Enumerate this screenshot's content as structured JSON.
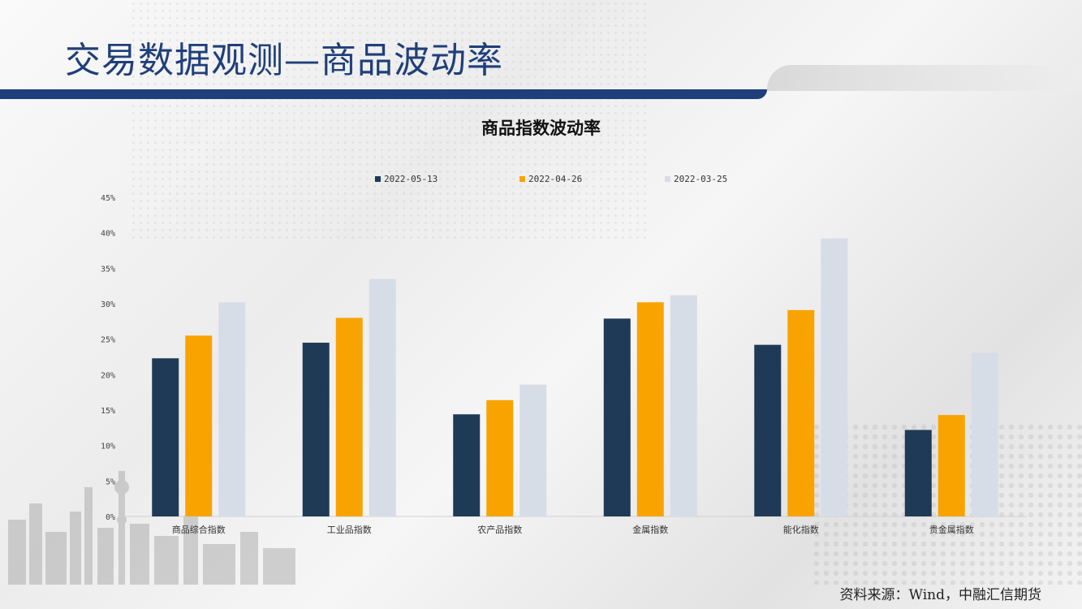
{
  "page": {
    "title": "交易数据观测—商品波动率",
    "source": "资料来源：Wind，中融汇信期货"
  },
  "chart_data": {
    "type": "bar",
    "title": "商品指数波动率",
    "xlabel": "",
    "ylabel": "",
    "ylim": [
      0,
      45
    ],
    "yticks": [
      "0%",
      "5%",
      "10%",
      "15%",
      "20%",
      "25%",
      "30%",
      "35%",
      "40%",
      "45%"
    ],
    "grid": false,
    "legend_position": "top",
    "categories": [
      "商品综合指数",
      "工业品指数",
      "农产品指数",
      "金属指数",
      "能化指数",
      "贵金属指数"
    ],
    "series": [
      {
        "name": "2022-05-13",
        "color": "#1f3a56",
        "values": [
          22.3,
          24.5,
          14.4,
          27.9,
          24.2,
          12.2
        ]
      },
      {
        "name": "2022-04-26",
        "color": "#f9a300",
        "values": [
          25.5,
          28.0,
          16.4,
          30.2,
          29.1,
          14.3
        ]
      },
      {
        "name": "2022-03-25",
        "color": "#d7dde6",
        "values": [
          30.2,
          33.5,
          18.6,
          31.2,
          39.2,
          23.1
        ]
      }
    ]
  }
}
